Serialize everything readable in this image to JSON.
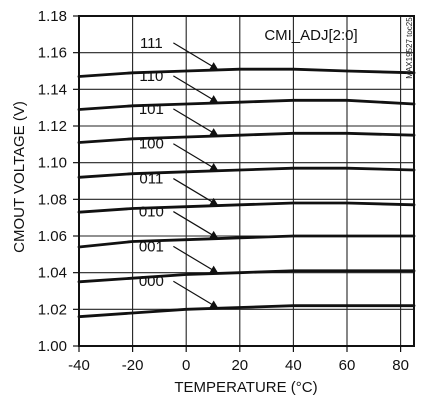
{
  "chart_data": {
    "type": "line",
    "xlabel": "TEMPERATURE (°C)",
    "ylabel": "CMOUT VOLTAGE (V)",
    "xlim": [
      -40,
      85
    ],
    "ylim": [
      1.0,
      1.18
    ],
    "xticks": [
      -40,
      -20,
      0,
      20,
      40,
      60,
      80
    ],
    "yticks": [
      1.0,
      1.02,
      1.04,
      1.06,
      1.08,
      1.1,
      1.12,
      1.14,
      1.16,
      1.18
    ],
    "x_tick_labels": [
      "-40",
      "-20",
      "0",
      "20",
      "40",
      "60",
      "80"
    ],
    "y_tick_labels": [
      "1.00",
      "1.02",
      "1.04",
      "1.06",
      "1.08",
      "1.10",
      "1.12",
      "1.14",
      "1.16",
      "1.18"
    ],
    "grid": true,
    "legend_title": "CMI_ADJ[2:0]",
    "figure_code": "MAX19527 toc25",
    "series": [
      {
        "name": "111",
        "x": [
          -40,
          -20,
          0,
          20,
          40,
          60,
          85
        ],
        "values": [
          1.147,
          1.149,
          1.15,
          1.151,
          1.151,
          1.15,
          1.149
        ]
      },
      {
        "name": "110",
        "x": [
          -40,
          -20,
          0,
          20,
          40,
          60,
          85
        ],
        "values": [
          1.129,
          1.131,
          1.132,
          1.133,
          1.134,
          1.134,
          1.132
        ]
      },
      {
        "name": "101",
        "x": [
          -40,
          -20,
          0,
          20,
          40,
          60,
          85
        ],
        "values": [
          1.111,
          1.113,
          1.114,
          1.115,
          1.116,
          1.116,
          1.115
        ]
      },
      {
        "name": "100",
        "x": [
          -40,
          -20,
          0,
          20,
          40,
          60,
          85
        ],
        "values": [
          1.092,
          1.094,
          1.095,
          1.096,
          1.097,
          1.097,
          1.096
        ]
      },
      {
        "name": "011",
        "x": [
          -40,
          -20,
          0,
          20,
          40,
          60,
          85
        ],
        "values": [
          1.073,
          1.075,
          1.076,
          1.077,
          1.078,
          1.078,
          1.077
        ]
      },
      {
        "name": "010",
        "x": [
          -40,
          -20,
          0,
          20,
          40,
          60,
          85
        ],
        "values": [
          1.054,
          1.057,
          1.058,
          1.059,
          1.06,
          1.06,
          1.06
        ]
      },
      {
        "name": "001",
        "x": [
          -40,
          -20,
          0,
          20,
          40,
          60,
          85
        ],
        "values": [
          1.035,
          1.037,
          1.039,
          1.04,
          1.041,
          1.041,
          1.041
        ]
      },
      {
        "name": "000",
        "x": [
          -40,
          -20,
          0,
          20,
          40,
          60,
          85
        ],
        "values": [
          1.016,
          1.018,
          1.02,
          1.021,
          1.022,
          1.022,
          1.022
        ]
      }
    ]
  }
}
